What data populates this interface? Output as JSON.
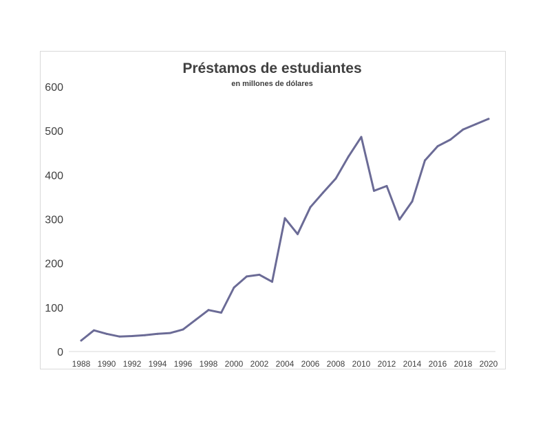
{
  "chart_data": {
    "type": "line",
    "title": "Préstamos de estudiantes",
    "subtitle": "en millones de dólares",
    "xlabel": "",
    "ylabel": "",
    "x_tick_labels": [
      "1988",
      "1990",
      "1992",
      "1994",
      "1996",
      "1998",
      "2000",
      "2002",
      "2004",
      "2006",
      "2008",
      "2010",
      "2012",
      "2014",
      "2016",
      "2018",
      "2020"
    ],
    "y_tick_labels": [
      "0",
      "100",
      "200",
      "300",
      "400",
      "500",
      "600"
    ],
    "ylim": [
      0,
      600
    ],
    "xlim": [
      1988,
      2020
    ],
    "grid": false,
    "legend": "none",
    "series": [
      {
        "color": "#6b6b96",
        "x": [
          1988,
          1989,
          1990,
          1991,
          1992,
          1993,
          1994,
          1995,
          1996,
          1997,
          1998,
          1999,
          2000,
          2001,
          2002,
          2003,
          2004,
          2005,
          2006,
          2007,
          2008,
          2009,
          2010,
          2011,
          2012,
          2013,
          2014,
          2015,
          2016,
          2017,
          2018,
          2019,
          2020
        ],
        "values": [
          25,
          48,
          40,
          34,
          35,
          37,
          40,
          42,
          50,
          72,
          94,
          88,
          145,
          170,
          174,
          158,
          302,
          266,
          327,
          360,
          392,
          442,
          486,
          364,
          375,
          299,
          340,
          433,
          465,
          480,
          503,
          515,
          527
        ]
      }
    ]
  }
}
